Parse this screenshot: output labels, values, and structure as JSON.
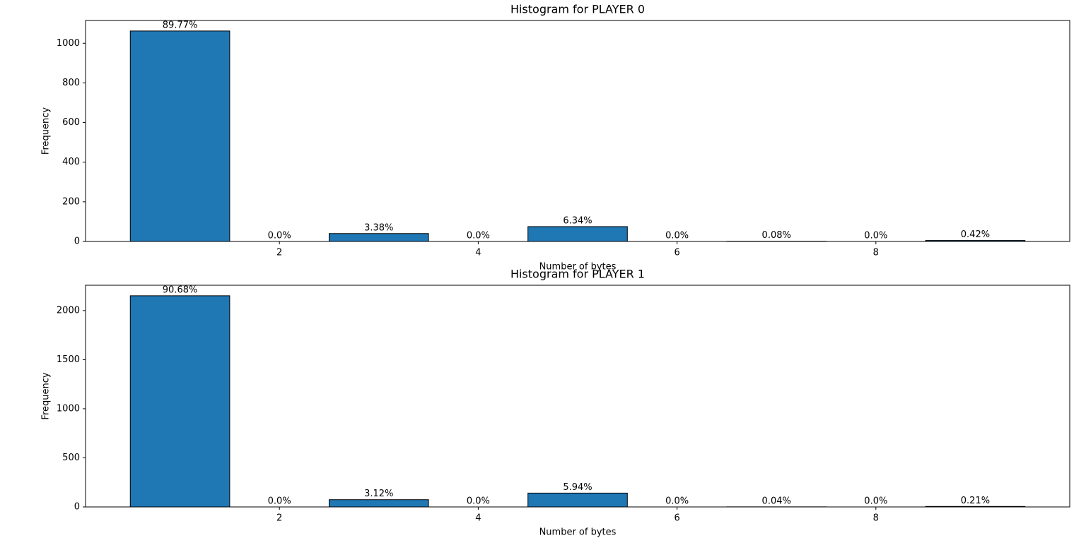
{
  "chart_data": [
    {
      "type": "histogram",
      "title": "Histogram for PLAYER 0",
      "xlabel": "Number of bytes",
      "ylabel": "Frequency",
      "bins": [
        0.5,
        1.5,
        2.5,
        3.5,
        4.5,
        5.5,
        6.5,
        7.5,
        8.5,
        9.5
      ],
      "values": [
        1062,
        0,
        40,
        0,
        75,
        0,
        1,
        0,
        5
      ],
      "bar_labels": [
        "89.77%",
        "0.0%",
        "3.38%",
        "0.0%",
        "6.34%",
        "0.0%",
        "0.08%",
        "0.0%",
        "0.42%"
      ],
      "color": "#1f77b4",
      "edgecolor": "#000000",
      "xlim": [
        0.05,
        9.95
      ],
      "ylim": [
        0,
        1115
      ],
      "xticks": [
        2,
        4,
        6,
        8
      ],
      "yticks": [
        0,
        200,
        400,
        600,
        800,
        1000
      ]
    },
    {
      "type": "histogram",
      "title": "Histogram for PLAYER 1",
      "xlabel": "Number of bytes",
      "ylabel": "Frequency",
      "bins": [
        0.5,
        1.5,
        2.5,
        3.5,
        4.5,
        5.5,
        6.5,
        7.5,
        8.5,
        9.5
      ],
      "values": [
        2151,
        0,
        74,
        0,
        141,
        0,
        1,
        0,
        5
      ],
      "bar_labels": [
        "90.68%",
        "0.0%",
        "3.12%",
        "0.0%",
        "5.94%",
        "0.0%",
        "0.04%",
        "0.0%",
        "0.21%"
      ],
      "color": "#1f77b4",
      "edgecolor": "#000000",
      "xlim": [
        0.05,
        9.95
      ],
      "ylim": [
        0,
        2258
      ],
      "xticks": [
        2,
        4,
        6,
        8
      ],
      "yticks": [
        0,
        500,
        1000,
        1500,
        2000
      ]
    }
  ]
}
